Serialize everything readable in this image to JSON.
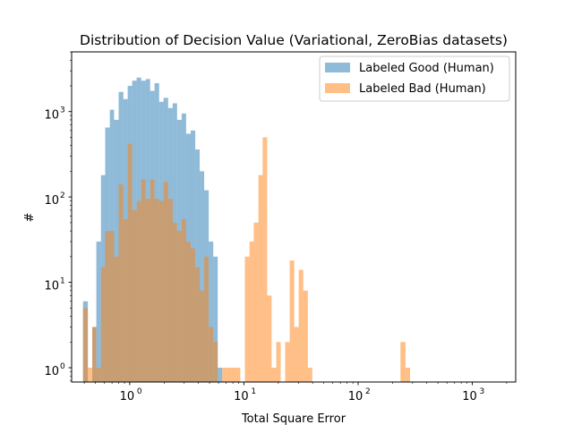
{
  "chart_data": {
    "type": "bar",
    "title": "Distribution of Decision Value (Variational, ZeroBias datasets)",
    "xlabel": "Total Square Error",
    "ylabel": "#",
    "xscale": "log",
    "yscale": "log",
    "xlim": [
      0.31,
      2400
    ],
    "ylim": [
      0.68,
      5000
    ],
    "xticks": [
      {
        "value": 1,
        "base": "10",
        "exp": "0"
      },
      {
        "value": 10,
        "base": "10",
        "exp": "1"
      },
      {
        "value": 100,
        "base": "10",
        "exp": "2"
      },
      {
        "value": 1000,
        "base": "10",
        "exp": "3"
      }
    ],
    "yticks": [
      {
        "value": 1,
        "base": "10",
        "exp": "0"
      },
      {
        "value": 10,
        "base": "10",
        "exp": "1"
      },
      {
        "value": 100,
        "base": "10",
        "exp": "2"
      },
      {
        "value": 1000,
        "base": "10",
        "exp": "3"
      }
    ],
    "legend_position": "top-right",
    "bin_edges": [
      0.39,
      0.43,
      0.47,
      0.51,
      0.56,
      0.61,
      0.67,
      0.73,
      0.8,
      0.88,
      0.96,
      1.05,
      1.15,
      1.26,
      1.38,
      1.51,
      1.65,
      1.81,
      1.98,
      2.17,
      2.38,
      2.6,
      2.85,
      3.12,
      3.42,
      3.75,
      4.1,
      4.49,
      4.92,
      5.39,
      5.9,
      6.46,
      7.08,
      7.75,
      8.49,
      9.3,
      10.2,
      11.2,
      12.2,
      13.4,
      14.6,
      16.0,
      17.5,
      19.2,
      21.0,
      23.0,
      25.2,
      27.6,
      30.2,
      33.1,
      36.3,
      39.7
    ],
    "extra_bins": [
      {
        "series": "Labeled Bad (Human)",
        "bins": [
          {
            "x0": 235,
            "x1": 260,
            "value": 2
          },
          {
            "x0": 260,
            "x1": 285,
            "value": 1
          }
        ]
      }
    ],
    "series": [
      {
        "name": "Labeled Good (Human)",
        "color": "#1f77b4",
        "values": [
          6,
          0,
          3,
          30,
          180,
          650,
          1050,
          800,
          1700,
          1400,
          2000,
          2300,
          2500,
          2300,
          2400,
          1750,
          2150,
          1300,
          1450,
          1100,
          1250,
          800,
          950,
          550,
          600,
          360,
          200,
          120,
          30,
          20,
          1,
          0,
          0,
          0,
          0,
          0,
          0,
          0,
          0,
          0,
          0,
          0,
          0,
          0,
          0,
          0,
          0,
          0,
          0,
          0,
          0
        ]
      },
      {
        "name": "Labeled Bad (Human)",
        "color": "#ff7f0e",
        "values": [
          5,
          1,
          3,
          1,
          15,
          40,
          40,
          20,
          140,
          55,
          420,
          70,
          90,
          160,
          95,
          160,
          95,
          90,
          150,
          95,
          50,
          40,
          55,
          30,
          25,
          15,
          8,
          20,
          3,
          2,
          0,
          1,
          1,
          1,
          1,
          0,
          20,
          30,
          50,
          180,
          500,
          7,
          1,
          2,
          0,
          2,
          18,
          3,
          14,
          8,
          1
        ]
      }
    ]
  }
}
